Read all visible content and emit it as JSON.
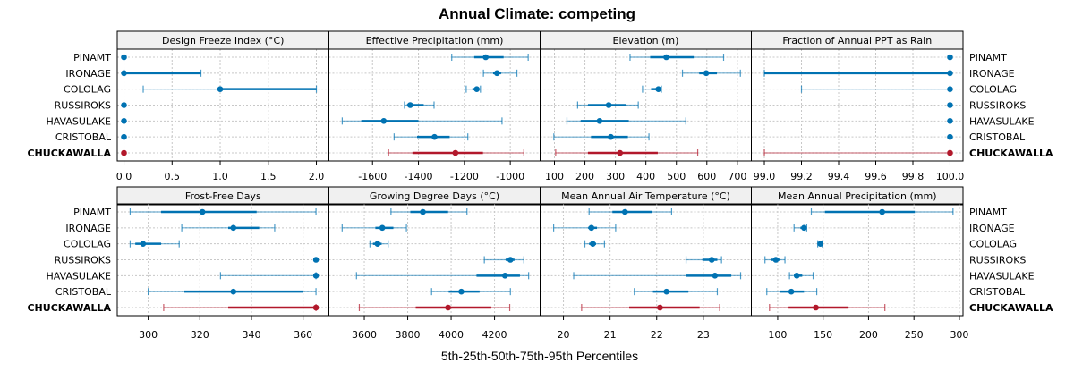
{
  "chart_data": {
    "type": "dotplot-percentile-intervals",
    "title": "Annual Climate: competing",
    "xlabel": "5th-25th-50th-75th-95th Percentiles",
    "rows": [
      "PINAMT",
      "IRONAGE",
      "COLOLAG",
      "RUSSIROKS",
      "HAVASULAKE",
      "CRISTOBAL",
      "CHUCKAWALLA"
    ],
    "highlight_row": "CHUCKAWALLA",
    "colors": {
      "default": "#0072b2",
      "highlight": "#b2182b",
      "grid": "#c8c8c8",
      "strip": "#f0f0f0"
    },
    "grid": true,
    "panels": [
      {
        "name": "Design Freeze Index (°C)",
        "xlim": [
          -0.07,
          2.13
        ],
        "ticks": [
          0.0,
          0.5,
          1.0,
          1.5,
          2.0
        ],
        "tick_labels": [
          "0.0",
          "0.5",
          "1.0",
          "1.5",
          "2.0"
        ],
        "data": [
          {
            "row": "PINAMT",
            "p5": 0,
            "p25": 0,
            "p50": 0,
            "p75": 0,
            "p95": 0
          },
          {
            "row": "IRONAGE",
            "p5": 0,
            "p25": 0,
            "p50": 0,
            "p75": 0.8,
            "p95": 0.8
          },
          {
            "row": "COLOLAG",
            "p5": 0.2,
            "p25": 1.0,
            "p50": 1.0,
            "p75": 2.0,
            "p95": 2.0
          },
          {
            "row": "RUSSIROKS",
            "p5": 0,
            "p25": 0,
            "p50": 0,
            "p75": 0,
            "p95": 0
          },
          {
            "row": "HAVASULAKE",
            "p5": 0,
            "p25": 0,
            "p50": 0,
            "p75": 0,
            "p95": 0
          },
          {
            "row": "CRISTOBAL",
            "p5": 0,
            "p25": 0,
            "p50": 0,
            "p75": 0,
            "p95": 0
          },
          {
            "row": "CHUCKAWALLA",
            "p5": 0,
            "p25": 0,
            "p50": 0,
            "p75": 0,
            "p95": 0
          }
        ]
      },
      {
        "name": "Effective Precipitation (mm)",
        "xlim": [
          -1790,
          -870
        ],
        "ticks": [
          -1600,
          -1400,
          -1200,
          -1000
        ],
        "tick_labels": [
          "-1600",
          "-1400",
          "-1200",
          "-1000"
        ],
        "data": [
          {
            "row": "PINAMT",
            "p5": -1255,
            "p25": -1157,
            "p50": -1107,
            "p75": -1029,
            "p95": -922
          },
          {
            "row": "IRONAGE",
            "p5": -1117,
            "p25": -1075,
            "p50": -1058,
            "p75": -1040,
            "p95": -971
          },
          {
            "row": "COLOLAG",
            "p5": -1192,
            "p25": -1165,
            "p50": -1146,
            "p75": -1138,
            "p95": -1130
          },
          {
            "row": "RUSSIROKS",
            "p5": -1461,
            "p25": -1450,
            "p50": -1436,
            "p75": -1377,
            "p95": -1332
          },
          {
            "row": "HAVASULAKE",
            "p5": -1732,
            "p25": -1649,
            "p50": -1551,
            "p75": -1400,
            "p95": -1036
          },
          {
            "row": "CRISTOBAL",
            "p5": -1506,
            "p25": -1406,
            "p50": -1330,
            "p75": -1264,
            "p95": -1185
          },
          {
            "row": "CHUCKAWALLA",
            "p5": -1530,
            "p25": -1426,
            "p50": -1239,
            "p75": -1119,
            "p95": -941
          }
        ]
      },
      {
        "name": "Elevation (m)",
        "xlim": [
          53,
          746
        ],
        "ticks": [
          100,
          200,
          300,
          400,
          500,
          600,
          700
        ],
        "tick_labels": [
          "100",
          "200",
          "300",
          "400",
          "500",
          "600",
          "700"
        ],
        "data": [
          {
            "row": "PINAMT",
            "p5": 348,
            "p25": 414,
            "p50": 467,
            "p75": 557,
            "p95": 655
          },
          {
            "row": "IRONAGE",
            "p5": 520,
            "p25": 575,
            "p50": 598,
            "p75": 633,
            "p95": 710
          },
          {
            "row": "COLOLAG",
            "p5": 389,
            "p25": 417,
            "p50": 441,
            "p75": 447,
            "p95": 451
          },
          {
            "row": "RUSSIROKS",
            "p5": 176,
            "p25": 210,
            "p50": 278,
            "p75": 336,
            "p95": 375
          },
          {
            "row": "HAVASULAKE",
            "p5": 141,
            "p25": 186,
            "p50": 248,
            "p75": 344,
            "p95": 531
          },
          {
            "row": "CRISTOBAL",
            "p5": 98,
            "p25": 220,
            "p50": 285,
            "p75": 341,
            "p95": 410
          },
          {
            "row": "CHUCKAWALLA",
            "p5": 104,
            "p25": 210,
            "p50": 315,
            "p75": 439,
            "p95": 570
          }
        ]
      },
      {
        "name": "Fraction of Annual PPT as Rain",
        "xlim": [
          98.93,
          100.07
        ],
        "ticks": [
          99.0,
          99.2,
          99.4,
          99.6,
          99.8,
          100.0
        ],
        "tick_labels": [
          "99.0",
          "99.2",
          "99.4",
          "99.6",
          "99.8",
          "100.0"
        ],
        "data": [
          {
            "row": "PINAMT",
            "p5": 100,
            "p25": 100,
            "p50": 100,
            "p75": 100,
            "p95": 100
          },
          {
            "row": "IRONAGE",
            "p5": 99.0,
            "p25": 99.0,
            "p50": 100,
            "p75": 100,
            "p95": 100
          },
          {
            "row": "COLOLAG",
            "p5": 99.2,
            "p25": 100,
            "p50": 100,
            "p75": 100,
            "p95": 100
          },
          {
            "row": "RUSSIROKS",
            "p5": 100,
            "p25": 100,
            "p50": 100,
            "p75": 100,
            "p95": 100
          },
          {
            "row": "HAVASULAKE",
            "p5": 100,
            "p25": 100,
            "p50": 100,
            "p75": 100,
            "p95": 100
          },
          {
            "row": "CRISTOBAL",
            "p5": 100,
            "p25": 100,
            "p50": 100,
            "p75": 100,
            "p95": 100
          },
          {
            "row": "CHUCKAWALLA",
            "p5": 99.0,
            "p25": 100,
            "p50": 100,
            "p75": 100,
            "p95": 100
          }
        ]
      },
      {
        "name": "Frost-Free Days",
        "xlim": [
          288,
          370
        ],
        "ticks": [
          300,
          320,
          340,
          360
        ],
        "tick_labels": [
          "300",
          "320",
          "340",
          "360"
        ],
        "data": [
          {
            "row": "PINAMT",
            "p5": 293,
            "p25": 305,
            "p50": 321,
            "p75": 342,
            "p95": 365
          },
          {
            "row": "IRONAGE",
            "p5": 313,
            "p25": 331,
            "p50": 333,
            "p75": 343,
            "p95": 349
          },
          {
            "row": "COLOLAG",
            "p5": 293,
            "p25": 295,
            "p50": 298,
            "p75": 305,
            "p95": 312
          },
          {
            "row": "RUSSIROKS",
            "p5": 365,
            "p25": 365,
            "p50": 365,
            "p75": 365,
            "p95": 365
          },
          {
            "row": "HAVASULAKE",
            "p5": 328,
            "p25": 365,
            "p50": 365,
            "p75": 365,
            "p95": 365
          },
          {
            "row": "CRISTOBAL",
            "p5": 300,
            "p25": 314,
            "p50": 333,
            "p75": 360,
            "p95": 365
          },
          {
            "row": "CHUCKAWALLA",
            "p5": 306,
            "p25": 331,
            "p50": 365,
            "p75": 365,
            "p95": 365
          }
        ]
      },
      {
        "name": "Growing Degree Days (°C)",
        "xlim": [
          3437,
          4410
        ],
        "ticks": [
          3600,
          3800,
          4000,
          4200
        ],
        "tick_labels": [
          "3600",
          "3800",
          "4000",
          "4200"
        ],
        "data": [
          {
            "row": "PINAMT",
            "p5": 3723,
            "p25": 3812,
            "p50": 3870,
            "p75": 3986,
            "p95": 4073
          },
          {
            "row": "IRONAGE",
            "p5": 3498,
            "p25": 3651,
            "p50": 3683,
            "p75": 3734,
            "p95": 3794
          },
          {
            "row": "COLOLAG",
            "p5": 3626,
            "p25": 3640,
            "p50": 3661,
            "p75": 3680,
            "p95": 3710
          },
          {
            "row": "RUSSIROKS",
            "p5": 4153,
            "p25": 4251,
            "p50": 4273,
            "p75": 4292,
            "p95": 4335
          },
          {
            "row": "HAVASULAKE",
            "p5": 3564,
            "p25": 4117,
            "p50": 4248,
            "p75": 4317,
            "p95": 4357
          },
          {
            "row": "CRISTOBAL",
            "p5": 3910,
            "p25": 3989,
            "p50": 4047,
            "p75": 4131,
            "p95": 4273
          },
          {
            "row": "CHUCKAWALLA",
            "p5": 3577,
            "p25": 3837,
            "p50": 3986,
            "p75": 4185,
            "p95": 4270
          }
        ]
      },
      {
        "name": "Mean Annual Air Temperature (°C)",
        "xlim": [
          19.5,
          24.03
        ],
        "ticks": [
          20,
          21,
          22,
          23
        ],
        "tick_labels": [
          "20",
          "21",
          "22",
          "23"
        ],
        "data": [
          {
            "row": "PINAMT",
            "p5": 20.55,
            "p25": 21.05,
            "p50": 21.32,
            "p75": 21.9,
            "p95": 22.32
          },
          {
            "row": "IRONAGE",
            "p5": 19.79,
            "p25": 20.53,
            "p50": 20.6,
            "p75": 20.72,
            "p95": 21.12
          },
          {
            "row": "COLOLAG",
            "p5": 20.46,
            "p25": 20.55,
            "p50": 20.63,
            "p75": 20.7,
            "p95": 20.88
          },
          {
            "row": "RUSSIROKS",
            "p5": 22.63,
            "p25": 22.98,
            "p50": 23.18,
            "p75": 23.3,
            "p95": 23.39
          },
          {
            "row": "HAVASULAKE",
            "p5": 20.22,
            "p25": 22.62,
            "p50": 23.25,
            "p75": 23.6,
            "p95": 23.8
          },
          {
            "row": "CRISTOBAL",
            "p5": 21.52,
            "p25": 21.92,
            "p50": 22.21,
            "p75": 22.68,
            "p95": 23.3
          },
          {
            "row": "CHUCKAWALLA",
            "p5": 20.39,
            "p25": 21.41,
            "p50": 22.07,
            "p75": 22.92,
            "p95": 23.35
          }
        ]
      },
      {
        "name": "Mean Annual Precipitation (mm)",
        "xlim": [
          71,
          304
        ],
        "ticks": [
          100,
          150,
          200,
          250,
          300
        ],
        "tick_labels": [
          "100",
          "150",
          "200",
          "250",
          "300"
        ],
        "data": [
          {
            "row": "PINAMT",
            "p5": 137,
            "p25": 152,
            "p50": 215,
            "p75": 251,
            "p95": 293
          },
          {
            "row": "IRONAGE",
            "p5": 118,
            "p25": 125,
            "p50": 129,
            "p75": 131,
            "p95": 132
          },
          {
            "row": "COLOLAG",
            "p5": 144,
            "p25": 146,
            "p50": 147,
            "p75": 148,
            "p95": 149
          },
          {
            "row": "RUSSIROKS",
            "p5": 86,
            "p25": 93,
            "p50": 98,
            "p75": 102,
            "p95": 108
          },
          {
            "row": "HAVASULAKE",
            "p5": 113,
            "p25": 118,
            "p50": 121,
            "p75": 127,
            "p95": 139
          },
          {
            "row": "CRISTOBAL",
            "p5": 88,
            "p25": 102,
            "p50": 115,
            "p75": 129,
            "p95": 143
          },
          {
            "row": "CHUCKAWALLA",
            "p5": 91,
            "p25": 112,
            "p50": 142,
            "p75": 178,
            "p95": 218
          }
        ]
      }
    ]
  }
}
